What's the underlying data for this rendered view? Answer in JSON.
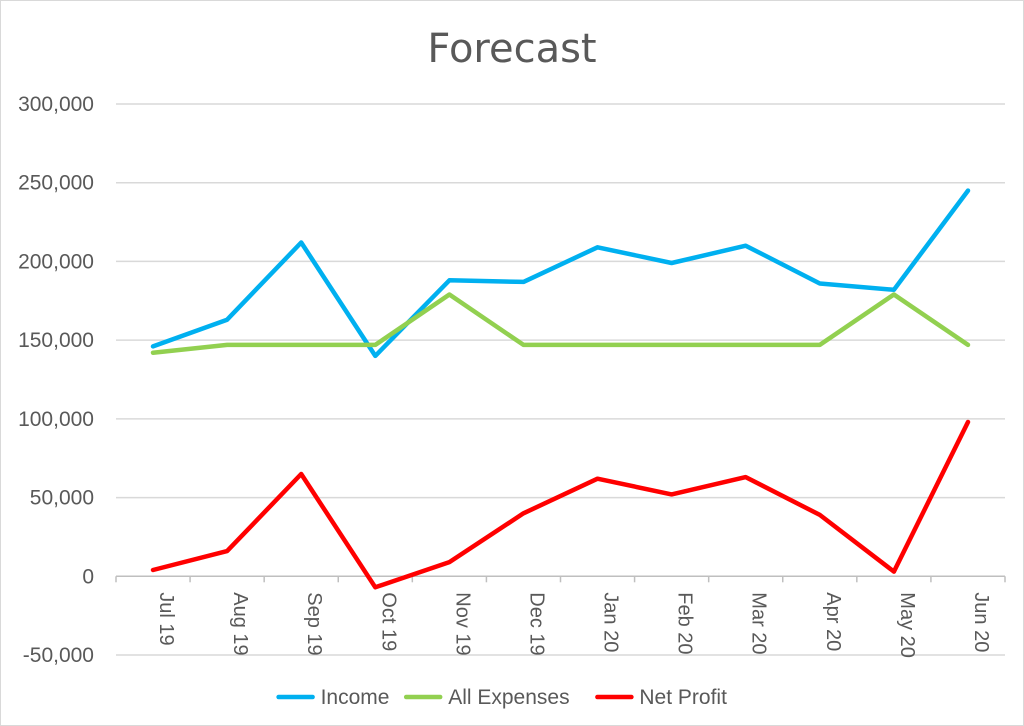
{
  "chart_data": {
    "type": "line",
    "title": "Forecast",
    "categories": [
      "Jul 19",
      "Aug 19",
      "Sep 19",
      "Oct 19",
      "Nov 19",
      "Dec 19",
      "Jan 20",
      "Feb 20",
      "Mar 20",
      "Apr 20",
      "May 20",
      "Jun 20"
    ],
    "ylim": [
      -50000,
      300000
    ],
    "yticks": [
      -50000,
      0,
      50000,
      100000,
      150000,
      200000,
      250000,
      300000
    ],
    "ytick_labels": [
      "-50,000",
      "0",
      "50,000",
      "100,000",
      "150,000",
      "200,000",
      "250,000",
      "300,000"
    ],
    "grid": true,
    "legend_position": "bottom",
    "series": [
      {
        "name": "Income",
        "color": "#00b0f0",
        "values": [
          146000,
          163000,
          212000,
          140000,
          188000,
          187000,
          209000,
          199000,
          210000,
          186000,
          182000,
          245000
        ]
      },
      {
        "name": "All Expenses",
        "color": "#92d050",
        "values": [
          142000,
          147000,
          147000,
          147000,
          179000,
          147000,
          147000,
          147000,
          147000,
          147000,
          179000,
          147000
        ]
      },
      {
        "name": "Net Profit",
        "color": "#ff0000",
        "values": [
          4000,
          16000,
          65000,
          -7000,
          9000,
          40000,
          62000,
          52000,
          63000,
          39000,
          3000,
          98000
        ]
      }
    ]
  }
}
